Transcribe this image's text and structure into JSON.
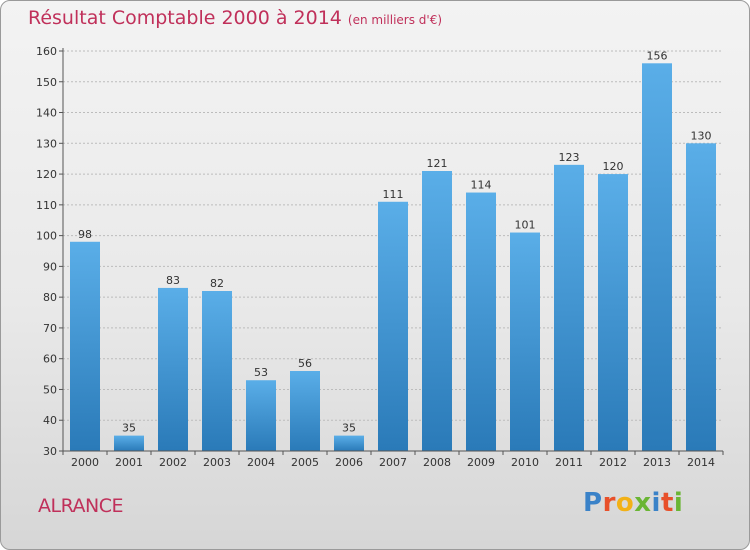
{
  "header": {
    "title": "Résultat Comptable 2000 à 2014",
    "subtitle": "(en milliers d'€)"
  },
  "footer": {
    "commune": "ALRANCE",
    "brand": "Proxiti",
    "brand_colors": [
      "#3a82c8",
      "#e8502a",
      "#f2b117",
      "#6ab534",
      "#3a82c8",
      "#e8502a",
      "#6ab534"
    ]
  },
  "colors": {
    "bar_light": "#5aaee8",
    "bar_dark": "#2a7ab8",
    "grid": "#bcbcbc",
    "title": "#c0305a"
  },
  "chart_data": {
    "type": "bar",
    "title": "Résultat Comptable 2000 à 2014",
    "subtitle": "(en milliers d'€)",
    "categories": [
      "2000",
      "2001",
      "2002",
      "2003",
      "2004",
      "2005",
      "2006",
      "2007",
      "2008",
      "2009",
      "2010",
      "2011",
      "2012",
      "2013",
      "2014"
    ],
    "values": [
      98,
      35,
      83,
      82,
      53,
      56,
      35,
      111,
      121,
      114,
      101,
      123,
      120,
      156,
      130
    ],
    "ylim": [
      30,
      160
    ],
    "yticks": [
      30,
      40,
      50,
      60,
      70,
      80,
      90,
      100,
      110,
      120,
      130,
      140,
      150,
      160
    ],
    "grid": true,
    "xlabel": "",
    "ylabel": ""
  }
}
